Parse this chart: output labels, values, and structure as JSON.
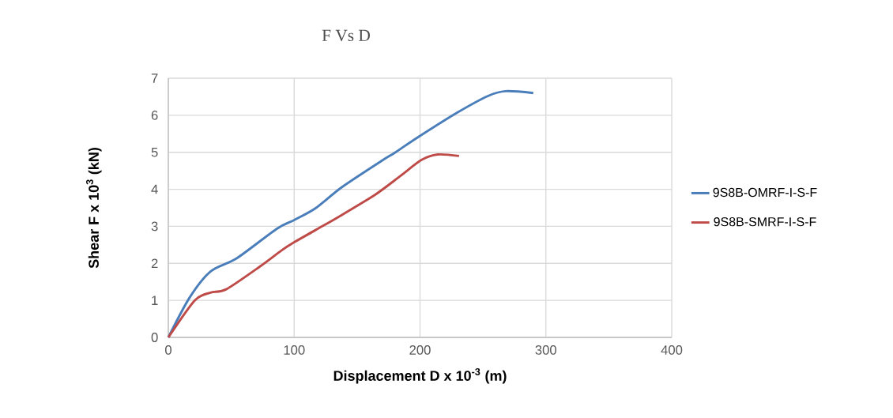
{
  "chart_data": {
    "type": "line",
    "title": "F Vs D",
    "xlabel": "Displacement D x 10$^{-3}$ (m)",
    "ylabel": "Shear F x 10$^{3}$ (kN)",
    "xlim": [
      0,
      400
    ],
    "ylim": [
      0,
      7
    ],
    "xticks": [
      0,
      100,
      200,
      300,
      400
    ],
    "yticks": [
      0,
      1,
      2,
      3,
      4,
      5,
      6,
      7
    ],
    "grid": true,
    "legend": "right",
    "series": [
      {
        "name": "9S8B-OMRF-I-S-F",
        "color": "#4a7ebb",
        "x": [
          0,
          16.8,
          33.5,
          54.5,
          86,
          100,
          117,
          138,
          170,
          180,
          199,
          229,
          254,
          268,
          290
        ],
        "values": [
          0,
          1.07,
          1.78,
          2.14,
          2.93,
          3.17,
          3.49,
          4.06,
          4.78,
          4.99,
          5.42,
          6.06,
          6.52,
          6.65,
          6.6
        ]
      },
      {
        "name": "9S8B-SMRF-I-S-F",
        "color": "#be4b48",
        "x": [
          0,
          21,
          33.5,
          46,
          73,
          90,
          100,
          117,
          138,
          165,
          184,
          201,
          214,
          231
        ],
        "values": [
          0,
          1.0,
          1.21,
          1.3,
          1.92,
          2.35,
          2.57,
          2.9,
          3.31,
          3.87,
          4.35,
          4.79,
          4.94,
          4.9
        ]
      }
    ]
  }
}
